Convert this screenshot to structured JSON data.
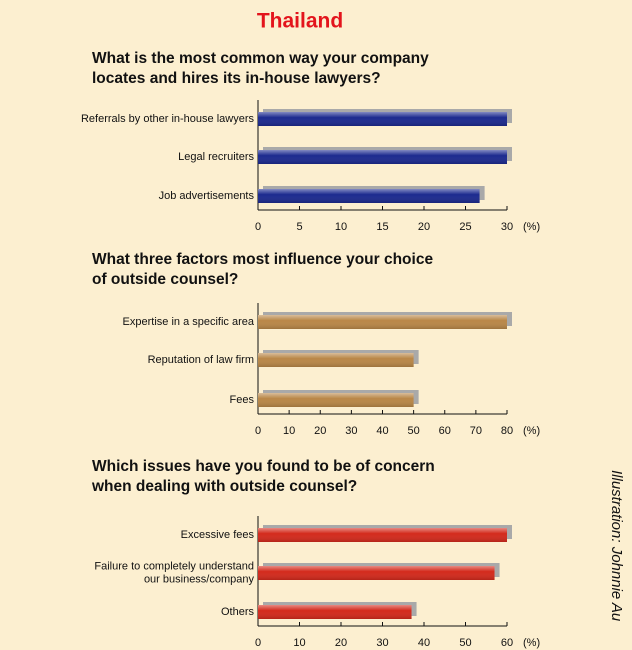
{
  "title": "Thailand",
  "credit": "Illustration: Johnnie Au",
  "chart_data": [
    {
      "type": "bar",
      "orientation": "horizontal",
      "title": "What is the most common way your company\nlocates and hires its in-house lawyers?",
      "categories": [
        "Referrals by other in-house lawyers",
        "Legal recruiters",
        "Job advertisements"
      ],
      "values": [
        30,
        30,
        26.7
      ],
      "color": "#1f2b8f",
      "xlim": [
        0,
        30
      ],
      "xticks": [
        0,
        5,
        10,
        15,
        20,
        25,
        30
      ],
      "x_label": "(%)"
    },
    {
      "type": "bar",
      "orientation": "horizontal",
      "title": "What three factors most influence your choice\nof outside counsel?",
      "categories": [
        "Expertise in a specific area",
        "Reputation of law firm",
        "Fees"
      ],
      "values": [
        80,
        50,
        50
      ],
      "color": "#b98747",
      "xlim": [
        0,
        80
      ],
      "xticks": [
        0,
        10,
        20,
        30,
        40,
        50,
        60,
        70,
        80
      ],
      "x_label": "(%)"
    },
    {
      "type": "bar",
      "orientation": "horizontal",
      "title": "Which issues have you found to be of concern\nwhen dealing with outside counsel?",
      "categories": [
        "Excessive fees",
        "Failure to completely understand\nour business/company",
        "Others"
      ],
      "values": [
        60,
        57,
        37
      ],
      "color": "#d3291f",
      "xlim": [
        0,
        60
      ],
      "xticks": [
        0,
        10,
        20,
        30,
        40,
        50,
        60
      ],
      "x_label": "(%)"
    }
  ]
}
